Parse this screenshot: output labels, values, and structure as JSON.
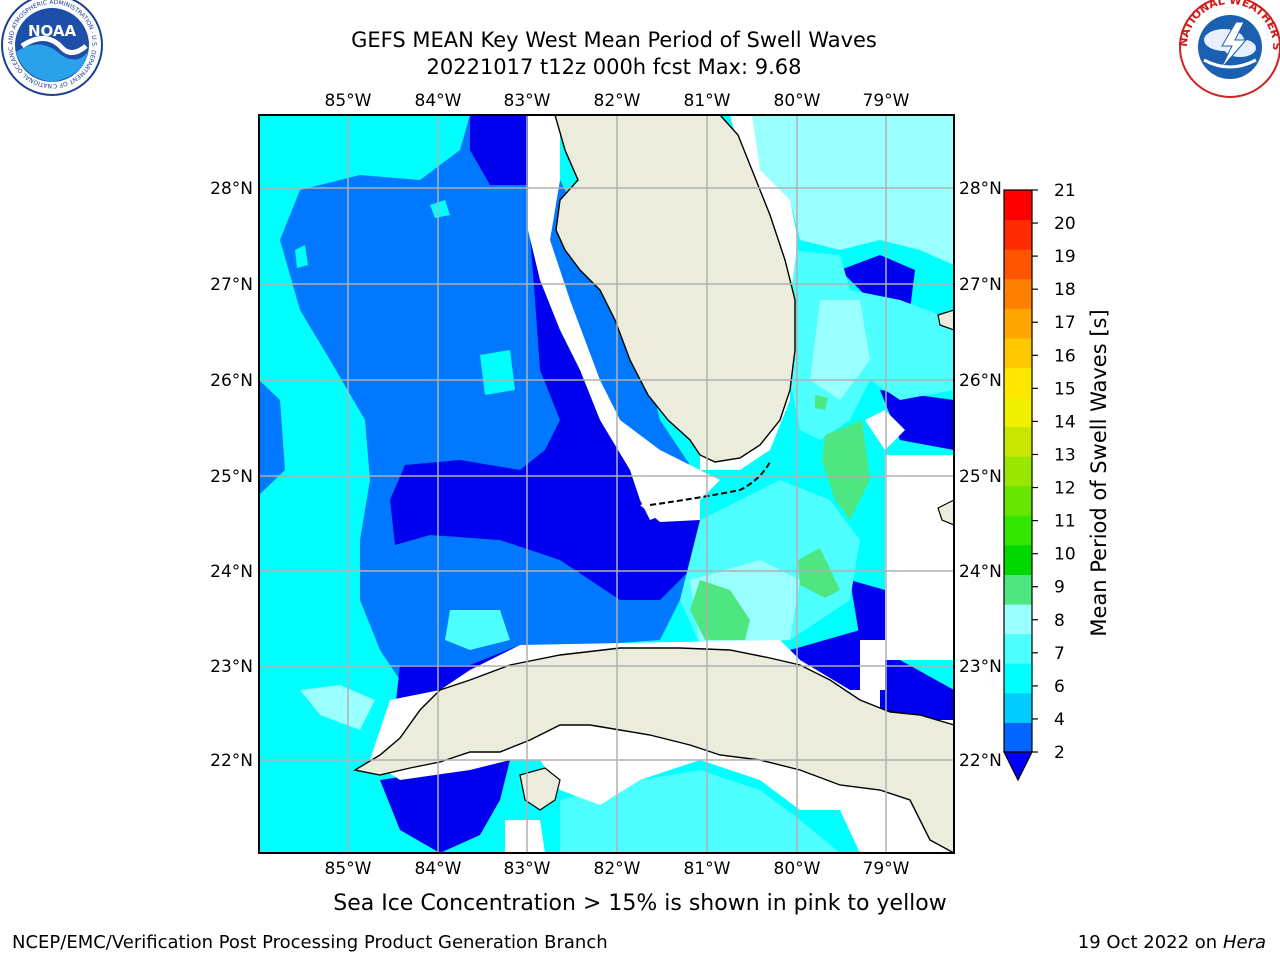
{
  "title_line1": "GEFS MEAN Key West Mean Period of Swell Waves",
  "title_line2": "20221017 t12z 000h fcst   Max: 9.68",
  "lon_labels": [
    "85°W",
    "84°W",
    "83°W",
    "82°W",
    "81°W",
    "80°W",
    "79°W"
  ],
  "lat_labels": [
    "28°N",
    "27°N",
    "26°N",
    "25°N",
    "24°N",
    "23°N",
    "22°N"
  ],
  "colorbar": {
    "label": "Mean Period of Swell Waves [s]",
    "ticks": [
      "21",
      "20",
      "19",
      "18",
      "17",
      "16",
      "15",
      "14",
      "13",
      "12",
      "11",
      "10",
      "9",
      "8",
      "7",
      "6",
      "4",
      "2"
    ],
    "colors": [
      "#0066ff",
      "#00ccff",
      "#00ffff",
      "#4dffff",
      "#99ffff",
      "#4de680",
      "#00d900",
      "#33e600",
      "#66e600",
      "#99e600",
      "#c8e600",
      "#f0f000",
      "#ffe600",
      "#ffc800",
      "#ffa500",
      "#ff8000",
      "#ff5500",
      "#ff2a00",
      "#ff0000"
    ],
    "under_color": "#0000ff"
  },
  "colors": {
    "land": "#ececdc",
    "no_data": "#ffffff",
    "grid": "#b0b0b0"
  },
  "note": "Sea Ice Concentration > 15% is shown in pink to yellow",
  "credit": "NCEP/EMC/Verification Post Processing Product Generation Branch",
  "date_prefix": "19 Oct 2022 on",
  "date_host": "Hera",
  "logos": {
    "noaa": "NOAA",
    "noaa_ring": "NATIONAL OCEANIC AND ATMOSPHERIC ADMINISTRATION · U.S. DEPARTMENT OF COMMERCE",
    "nws_ring": "NATIONAL WEATHER SERVICE"
  }
}
